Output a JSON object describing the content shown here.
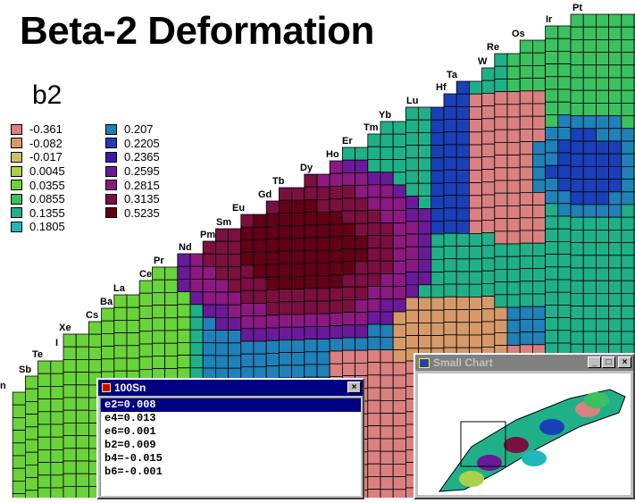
{
  "title": "Beta-2 Deformation",
  "legend": {
    "title": "b2",
    "items": [
      {
        "label": "-0.361",
        "color": "#d98080"
      },
      {
        "label": "-0.082",
        "color": "#d69a6a"
      },
      {
        "label": "-0.017",
        "color": "#cfc06a"
      },
      {
        "label": "0.0045",
        "color": "#a8d24a"
      },
      {
        "label": "0.0355",
        "color": "#6ad23a"
      },
      {
        "label": "0.0855",
        "color": "#3cc060"
      },
      {
        "label": "0.1355",
        "color": "#20b088"
      },
      {
        "label": "0.1805",
        "color": "#20b8b8"
      },
      {
        "label": "0.207",
        "color": "#2080b8"
      },
      {
        "label": "0.2205",
        "color": "#1a40b8"
      },
      {
        "label": "0.2365",
        "color": "#3a1aa8"
      },
      {
        "label": "0.2595",
        "color": "#6a1a98"
      },
      {
        "label": "0.2815",
        "color": "#8a1a80"
      },
      {
        "label": "0.3135",
        "color": "#7a1040"
      },
      {
        "label": "0.5235",
        "color": "#620018"
      }
    ]
  },
  "elements": [
    "n",
    "Sb",
    "Te",
    "I",
    "Xe",
    "Cs",
    "Ba",
    "La",
    "Ce",
    "Pr",
    "Nd",
    "Pm",
    "Sm",
    "Eu",
    "Gd",
    "Tb",
    "Dy",
    "Ho",
    "Er",
    "Tm",
    "Yb",
    "Lu",
    "Hf",
    "Ta",
    "W",
    "Re",
    "Os",
    "Ir",
    "Pt"
  ],
  "nuclide_window": {
    "title": "100Sn",
    "items": [
      "e2=0.008",
      "e4=0.013",
      "e6=0.001",
      "b2=0.009",
      "b4=-0.015",
      "b6=-0.001"
    ],
    "selected": 0
  },
  "small_chart_window": {
    "title": "Small Chart"
  }
}
